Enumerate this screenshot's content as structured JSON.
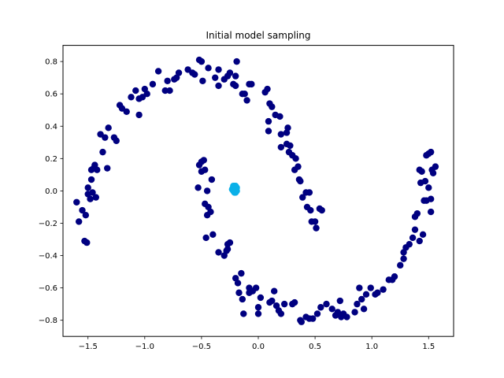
{
  "chart_data": {
    "type": "scatter",
    "title": "Initial model sampling",
    "xlabel": "",
    "ylabel": "",
    "xlim": [
      -1.72,
      1.72
    ],
    "ylim": [
      -0.9,
      0.9
    ],
    "xticks": [
      -1.5,
      -1.0,
      -0.5,
      0.0,
      0.5,
      1.0,
      1.5
    ],
    "xtick_labels": [
      "−1.5",
      "−1.0",
      "−0.5",
      "0.0",
      "0.5",
      "1.0",
      "1.5"
    ],
    "yticks": [
      -0.8,
      -0.6,
      -0.4,
      -0.2,
      0.0,
      0.2,
      0.4,
      0.6,
      0.8
    ],
    "ytick_labels": [
      "−0.8",
      "−0.6",
      "−0.4",
      "−0.2",
      "0.0",
      "0.2",
      "0.4",
      "0.6",
      "0.8"
    ],
    "grid": false,
    "legend": "none",
    "series": [
      {
        "color": "#000080",
        "points": [
          [
            -1.6,
            -0.07
          ],
          [
            -1.58,
            -0.19
          ],
          [
            -1.55,
            -0.12
          ],
          [
            -1.53,
            -0.31
          ],
          [
            -1.51,
            -0.32
          ],
          [
            -1.52,
            -0.15
          ],
          [
            -1.5,
            -0.02
          ],
          [
            -1.48,
            -0.05
          ],
          [
            -1.46,
            -0.01
          ],
          [
            -1.43,
            -0.04
          ],
          [
            -1.5,
            0.02
          ],
          [
            -1.47,
            0.07
          ],
          [
            -1.45,
            0.14
          ],
          [
            -1.47,
            0.13
          ],
          [
            -1.44,
            0.16
          ],
          [
            -1.42,
            0.13
          ],
          [
            -1.37,
            0.24
          ],
          [
            -1.33,
            0.14
          ],
          [
            -1.39,
            0.35
          ],
          [
            -1.35,
            0.33
          ],
          [
            -1.32,
            0.39
          ],
          [
            -1.27,
            0.33
          ],
          [
            -1.25,
            0.31
          ],
          [
            -1.22,
            0.53
          ],
          [
            -1.2,
            0.51
          ],
          [
            -1.16,
            0.49
          ],
          [
            -1.12,
            0.58
          ],
          [
            -1.08,
            0.62
          ],
          [
            -1.05,
            0.57
          ],
          [
            -1.02,
            0.58
          ],
          [
            -1.05,
            0.47
          ],
          [
            -1.0,
            0.63
          ],
          [
            -0.98,
            0.6
          ],
          [
            -0.93,
            0.66
          ],
          [
            -0.88,
            0.74
          ],
          [
            -0.82,
            0.62
          ],
          [
            -0.8,
            0.68
          ],
          [
            -0.78,
            0.62
          ],
          [
            -0.74,
            0.69
          ],
          [
            -0.72,
            0.7
          ],
          [
            -0.7,
            0.73
          ],
          [
            -0.62,
            0.75
          ],
          [
            -0.58,
            0.73
          ],
          [
            -0.56,
            0.72
          ],
          [
            -0.52,
            0.81
          ],
          [
            -0.5,
            0.8
          ],
          [
            -0.49,
            0.68
          ],
          [
            -0.44,
            0.76
          ],
          [
            -0.38,
            0.7
          ],
          [
            -0.35,
            0.75
          ],
          [
            -0.35,
            0.65
          ],
          [
            -0.3,
            0.69
          ],
          [
            -0.27,
            0.71
          ],
          [
            -0.25,
            0.73
          ],
          [
            -0.22,
            0.66
          ],
          [
            -0.2,
            0.65
          ],
          [
            -0.2,
            0.71
          ],
          [
            -0.19,
            0.8
          ],
          [
            -0.14,
            0.6
          ],
          [
            -0.12,
            0.6
          ],
          [
            -0.1,
            0.56
          ],
          [
            -0.08,
            0.66
          ],
          [
            -0.06,
            0.66
          ],
          [
            0.06,
            0.61
          ],
          [
            0.08,
            0.63
          ],
          [
            0.1,
            0.54
          ],
          [
            0.12,
            0.52
          ],
          [
            0.09,
            0.43
          ],
          [
            0.09,
            0.37
          ],
          [
            0.15,
            0.47
          ],
          [
            0.19,
            0.46
          ],
          [
            0.2,
            0.35
          ],
          [
            0.2,
            0.27
          ],
          [
            0.25,
            0.29
          ],
          [
            0.28,
            0.28
          ],
          [
            0.26,
            0.39
          ],
          [
            0.25,
            0.36
          ],
          [
            0.27,
            0.24
          ],
          [
            0.3,
            0.22
          ],
          [
            0.33,
            0.2
          ],
          [
            0.35,
            0.15
          ],
          [
            0.32,
            0.13
          ],
          [
            0.37,
            0.06
          ],
          [
            0.36,
            0.07
          ],
          [
            0.39,
            -0.04
          ],
          [
            0.42,
            -0.01
          ],
          [
            0.45,
            -0.01
          ],
          [
            0.43,
            -0.1
          ],
          [
            0.46,
            -0.12
          ],
          [
            0.47,
            -0.19
          ],
          [
            0.5,
            -0.19
          ],
          [
            0.51,
            -0.23
          ],
          [
            0.54,
            -0.11
          ],
          [
            0.56,
            -0.12
          ],
          [
            -0.52,
            0.16
          ],
          [
            -0.5,
            0.18
          ],
          [
            -0.48,
            0.19
          ],
          [
            -0.53,
            0.02
          ],
          [
            -0.5,
            0.12
          ],
          [
            -0.47,
            0.13
          ],
          [
            -0.41,
            0.07
          ],
          [
            -0.45,
            0.0
          ],
          [
            -0.47,
            -0.08
          ],
          [
            -0.44,
            -0.1
          ],
          [
            -0.42,
            -0.13
          ],
          [
            -0.45,
            -0.15
          ],
          [
            -0.46,
            -0.29
          ],
          [
            -0.4,
            -0.27
          ],
          [
            -0.35,
            -0.38
          ],
          [
            -0.3,
            -0.4
          ],
          [
            -0.28,
            -0.37
          ],
          [
            -0.27,
            -0.36
          ],
          [
            -0.27,
            -0.33
          ],
          [
            -0.25,
            -0.32
          ],
          [
            -0.2,
            -0.54
          ],
          [
            -0.15,
            -0.51
          ],
          [
            -0.18,
            -0.57
          ],
          [
            -0.17,
            -0.63
          ],
          [
            -0.14,
            -0.67
          ],
          [
            -0.13,
            -0.76
          ],
          [
            -0.08,
            -0.63
          ],
          [
            -0.08,
            -0.6
          ],
          [
            -0.05,
            -0.62
          ],
          [
            -0.02,
            -0.6
          ],
          [
            0.0,
            -0.72
          ],
          [
            0.0,
            -0.76
          ],
          [
            0.02,
            -0.66
          ],
          [
            0.1,
            -0.69
          ],
          [
            0.12,
            -0.68
          ],
          [
            0.14,
            -0.62
          ],
          [
            0.16,
            -0.71
          ],
          [
            0.18,
            -0.74
          ],
          [
            0.2,
            -0.76
          ],
          [
            0.23,
            -0.7
          ],
          [
            0.3,
            -0.7
          ],
          [
            0.32,
            -0.69
          ],
          [
            0.37,
            -0.8
          ],
          [
            0.38,
            -0.81
          ],
          [
            0.42,
            -0.78
          ],
          [
            0.45,
            -0.79
          ],
          [
            0.48,
            -0.79
          ],
          [
            0.52,
            -0.76
          ],
          [
            0.55,
            -0.72
          ],
          [
            0.6,
            -0.7
          ],
          [
            0.65,
            -0.73
          ],
          [
            0.68,
            -0.77
          ],
          [
            0.7,
            -0.75
          ],
          [
            0.72,
            -0.68
          ],
          [
            0.73,
            -0.78
          ],
          [
            0.75,
            -0.76
          ],
          [
            0.78,
            -0.78
          ],
          [
            0.85,
            -0.75
          ],
          [
            0.87,
            -0.7
          ],
          [
            0.89,
            -0.6
          ],
          [
            0.91,
            -0.67
          ],
          [
            0.93,
            -0.73
          ],
          [
            0.95,
            -0.64
          ],
          [
            0.99,
            -0.6
          ],
          [
            1.03,
            -0.64
          ],
          [
            1.05,
            -0.63
          ],
          [
            1.1,
            -0.61
          ],
          [
            1.15,
            -0.55
          ],
          [
            1.18,
            -0.55
          ],
          [
            1.2,
            -0.53
          ],
          [
            1.25,
            -0.46
          ],
          [
            1.28,
            -0.42
          ],
          [
            1.28,
            -0.38
          ],
          [
            1.3,
            -0.35
          ],
          [
            1.33,
            -0.33
          ],
          [
            1.36,
            -0.29
          ],
          [
            1.38,
            -0.24
          ],
          [
            1.38,
            -0.16
          ],
          [
            1.4,
            -0.14
          ],
          [
            1.42,
            -0.31
          ],
          [
            1.45,
            -0.27
          ],
          [
            1.46,
            -0.06
          ],
          [
            1.48,
            -0.06
          ],
          [
            1.5,
            0.02
          ],
          [
            1.52,
            -0.05
          ],
          [
            1.52,
            -0.13
          ],
          [
            1.53,
            0.13
          ],
          [
            1.54,
            0.11
          ],
          [
            1.56,
            0.15
          ],
          [
            1.48,
            0.22
          ],
          [
            1.5,
            0.23
          ],
          [
            1.52,
            0.24
          ],
          [
            1.44,
            0.12
          ],
          [
            1.42,
            0.13
          ],
          [
            1.43,
            0.05
          ],
          [
            1.47,
            0.06
          ]
        ]
      },
      {
        "color": "#0ab0e8",
        "points": [
          [
            -0.22,
            0.02
          ],
          [
            -0.21,
            0.03
          ],
          [
            -0.2,
            0.01
          ],
          [
            -0.22,
            0.0
          ],
          [
            -0.19,
            0.0
          ],
          [
            -0.21,
            -0.01
          ],
          [
            -0.2,
            0.03
          ],
          [
            -0.23,
            0.01
          ],
          [
            -0.19,
            0.02
          ],
          [
            -0.2,
            -0.01
          ],
          [
            -0.21,
            0.01
          ],
          [
            -0.22,
            0.03
          ]
        ]
      }
    ]
  }
}
